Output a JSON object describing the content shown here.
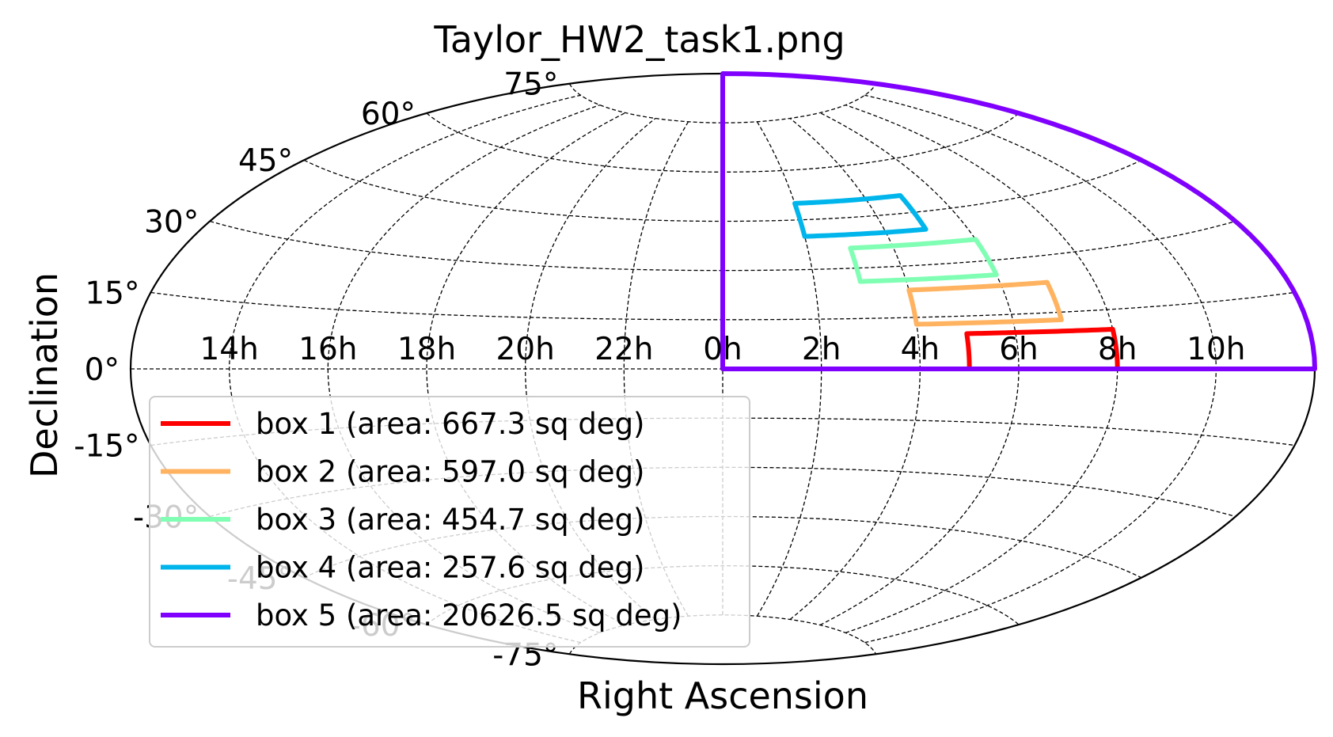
{
  "chart_data": {
    "type": "line",
    "projection": "aitoff",
    "title": "Taylor_HW2_task1.png",
    "xlabel": "Right Ascension",
    "ylabel": "Declination",
    "grid": true,
    "legend_position": "lower-left",
    "xtick_labels": [
      {
        "ra_hours": 14,
        "label": "14h"
      },
      {
        "ra_hours": 16,
        "label": "16h"
      },
      {
        "ra_hours": 18,
        "label": "18h"
      },
      {
        "ra_hours": 20,
        "label": "20h"
      },
      {
        "ra_hours": 22,
        "label": "22h"
      },
      {
        "ra_hours": 0,
        "label": "0h"
      },
      {
        "ra_hours": 2,
        "label": "2h"
      },
      {
        "ra_hours": 4,
        "label": "4h"
      },
      {
        "ra_hours": 6,
        "label": "6h"
      },
      {
        "ra_hours": 8,
        "label": "8h"
      },
      {
        "ra_hours": 10,
        "label": "10h"
      }
    ],
    "ytick_labels": [
      {
        "dec": -75,
        "label": "-75°"
      },
      {
        "dec": -60,
        "label": "-60°"
      },
      {
        "dec": -45,
        "label": "-45°"
      },
      {
        "dec": -30,
        "label": "-30°"
      },
      {
        "dec": -15,
        "label": "-15°"
      },
      {
        "dec": 0,
        "label": "0°"
      },
      {
        "dec": 15,
        "label": "15°"
      },
      {
        "dec": 30,
        "label": "30°"
      },
      {
        "dec": 45,
        "label": "45°"
      },
      {
        "dec": 60,
        "label": "60°"
      },
      {
        "dec": 75,
        "label": "75°"
      }
    ],
    "series": [
      {
        "name": "box 1 (area: 667.3 sq deg)",
        "color": "#ff0000",
        "ra_range_hours": [
          5,
          8
        ],
        "dec_range": [
          0,
          10
        ]
      },
      {
        "name": "box 2 (area: 597.0 sq deg)",
        "color": "#ffb360",
        "ra_range_hours": [
          4,
          7
        ],
        "dec_range": [
          13,
          23
        ]
      },
      {
        "name": "box 3 (area: 454.7 sq deg)",
        "color": "#80ffb4",
        "ra_range_hours": [
          3,
          6
        ],
        "dec_range": [
          26,
          36
        ]
      },
      {
        "name": "box 4 (area: 257.6 sq deg)",
        "color": "#00b5eb",
        "ra_range_hours": [
          2,
          5
        ],
        "dec_range": [
          40,
          50
        ]
      },
      {
        "name": "box 5 (area: 20626.5 sq deg)",
        "color": "#8000ff",
        "ra_range_hours": [
          0,
          12
        ],
        "dec_range": [
          0,
          90
        ]
      }
    ]
  }
}
